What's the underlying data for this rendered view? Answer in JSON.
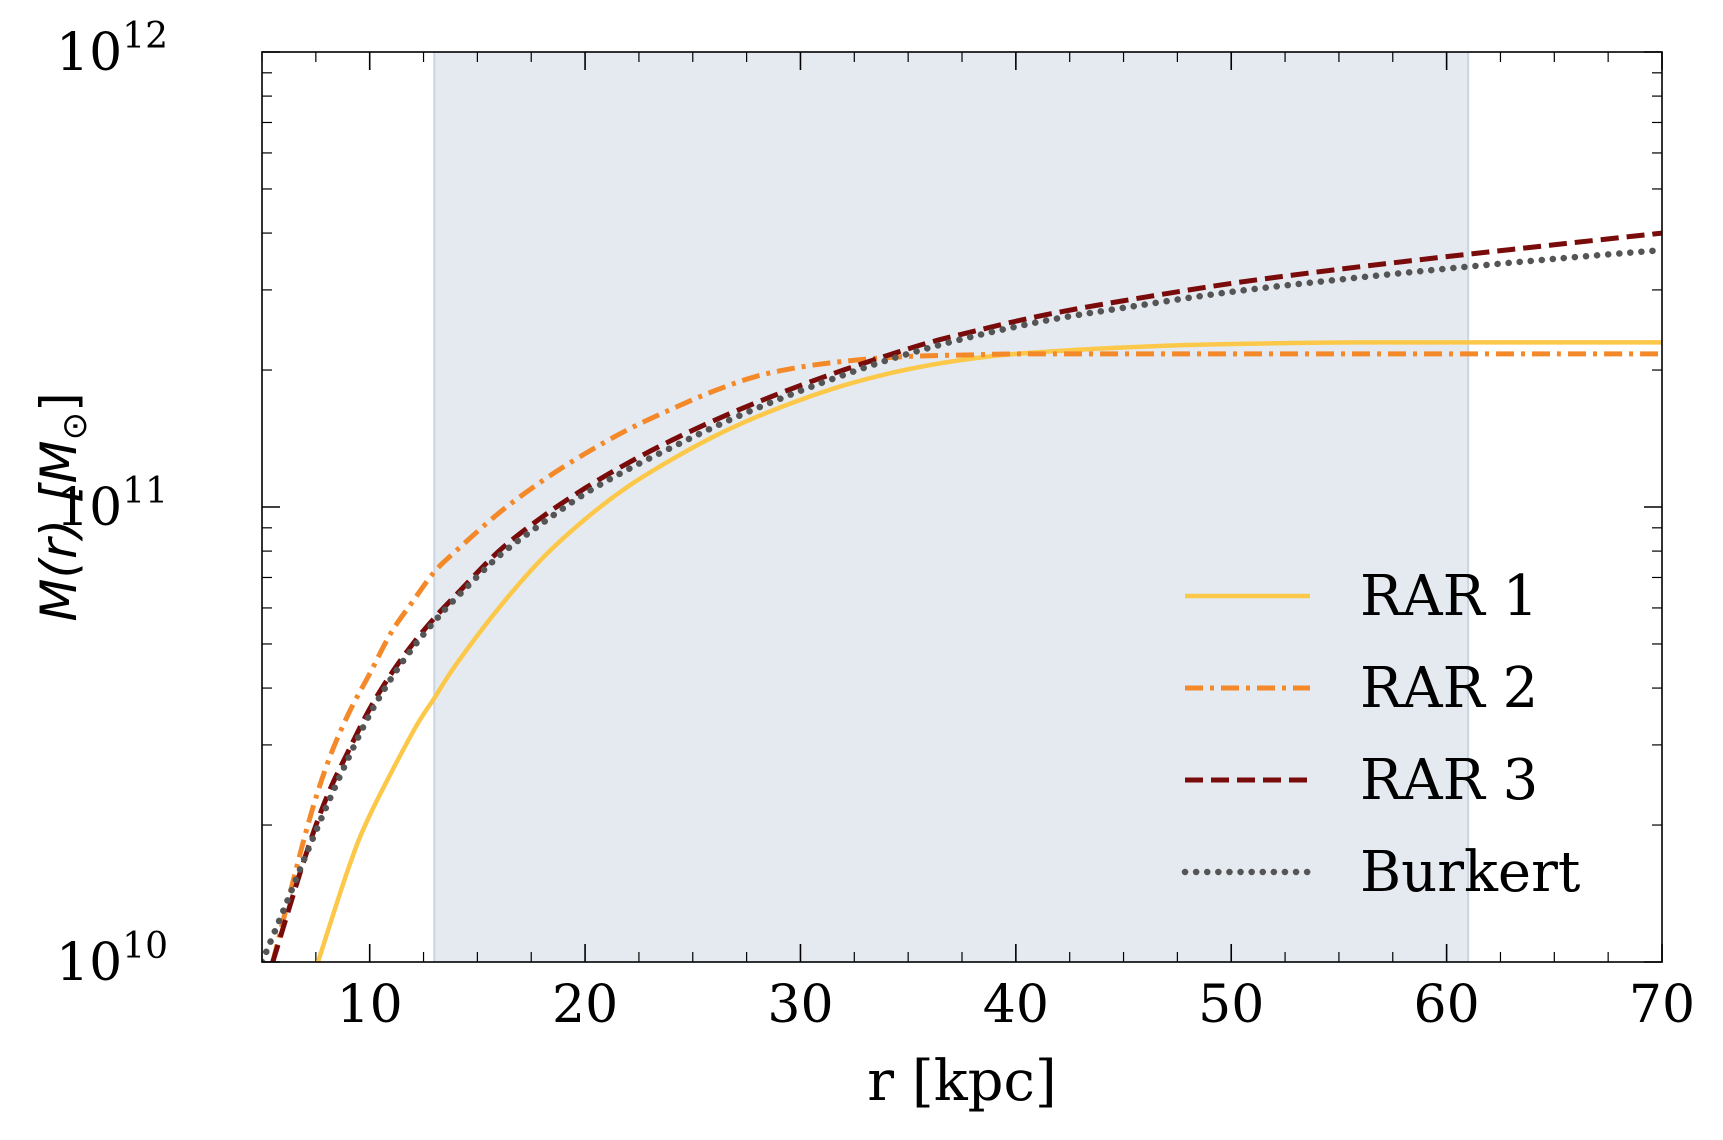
{
  "chart_data": {
    "type": "line",
    "xlabel": "r [kpc]",
    "ylabel": {
      "prefix": "M(r) [M",
      "sub": "⊙",
      "suffix": "]"
    },
    "yscale": "log",
    "xlim": [
      5,
      70
    ],
    "ylim": [
      10000000000,
      1000000000000
    ],
    "x_ticks": [
      {
        "value": 10,
        "label": "10"
      },
      {
        "value": 20,
        "label": "20"
      },
      {
        "value": 30,
        "label": "30"
      },
      {
        "value": 40,
        "label": "40"
      },
      {
        "value": 50,
        "label": "50"
      },
      {
        "value": 60,
        "label": "60"
      },
      {
        "value": 70,
        "label": "70"
      }
    ],
    "y_ticks": [
      {
        "value": 10000000000,
        "base": "10",
        "exp": "10"
      },
      {
        "value": 100000000000,
        "base": "10",
        "exp": "11"
      },
      {
        "value": 1000000000000,
        "base": "10",
        "exp": "12"
      }
    ],
    "shaded_region": {
      "x_start": 13,
      "x_end": 61,
      "color": "#e5eaf1",
      "edge_color": "#c9d5e2"
    },
    "legend_position": "center-right",
    "series": [
      {
        "name": "RAR 1",
        "color": "#fcc84a",
        "style": "solid",
        "x": [
          7.6,
          9,
          10,
          12,
          13,
          14,
          16,
          18,
          20,
          22,
          24,
          26,
          28,
          30,
          32,
          34,
          36,
          38,
          40,
          44,
          48,
          52,
          56,
          60,
          65,
          70
        ],
        "y": [
          10000000000,
          16000000000,
          21000000000,
          32000000000,
          38000000000,
          45000000000,
          60000000000,
          77000000000,
          94000000000,
          111000000000,
          127000000000,
          143000000000,
          158000000000,
          172000000000,
          185000000000,
          196000000000,
          205000000000,
          212000000000,
          217000000000,
          223000000000,
          227000000000,
          229000000000,
          230000000000,
          230000000000,
          230000000000,
          230000000000
        ]
      },
      {
        "name": "RAR 2",
        "color": "#f4892a",
        "style": "dashdot",
        "x": [
          5.5,
          7,
          8,
          9,
          10,
          11,
          12,
          13,
          14,
          16,
          18,
          20,
          22,
          24,
          26,
          28,
          30,
          32,
          34,
          36,
          38,
          40,
          45,
          50,
          55,
          60,
          65,
          70
        ],
        "y": [
          10000000000,
          19000000000,
          27000000000,
          35000000000,
          43000000000,
          53000000000,
          62000000000,
          72000000000,
          80000000000,
          97000000000,
          114000000000,
          131000000000,
          148000000000,
          164000000000,
          180000000000,
          194000000000,
          203000000000,
          209000000000,
          213000000000,
          215000000000,
          216000000000,
          217000000000,
          217000000000,
          217000000000,
          217000000000,
          217000000000,
          217000000000,
          217000000000
        ]
      },
      {
        "name": "RAR 3",
        "color": "#7a0b0b",
        "style": "dashed",
        "x": [
          5.5,
          7,
          8,
          9,
          10,
          11,
          12,
          13,
          14,
          16,
          18,
          20,
          22,
          24,
          26,
          28,
          30,
          32,
          34,
          36,
          38,
          40,
          42,
          45,
          50,
          55,
          60,
          65,
          70
        ],
        "y": [
          10000000000,
          17000000000,
          23000000000,
          29000000000,
          36000000000,
          43000000000,
          50000000000,
          57000000000,
          64000000000,
          80000000000,
          95000000000,
          110000000000,
          125000000000,
          140000000000,
          155000000000,
          170000000000,
          185000000000,
          200000000000,
          215000000000,
          230000000000,
          243000000000,
          256000000000,
          268000000000,
          284000000000,
          310000000000,
          333000000000,
          355000000000,
          377000000000,
          400000000000
        ]
      },
      {
        "name": "Burkert",
        "color": "#555555",
        "style": "dotted",
        "x": [
          5,
          6,
          7,
          8,
          9,
          10,
          11,
          12,
          13,
          14,
          16,
          18,
          20,
          22,
          24,
          26,
          28,
          30,
          32,
          34,
          36,
          38,
          40,
          42,
          45,
          50,
          55,
          60,
          65,
          70
        ],
        "y": [
          10000000000,
          13000000000,
          17000000000,
          22000000000,
          28000000000,
          35000000000,
          42000000000,
          49000000000,
          56000000000,
          63000000000,
          78000000000,
          92000000000,
          107000000000,
          121000000000,
          135000000000,
          150000000000,
          165000000000,
          180000000000,
          195000000000,
          210000000000,
          224000000000,
          237000000000,
          249000000000,
          260000000000,
          274000000000,
          297000000000,
          316000000000,
          334000000000,
          351000000000,
          367000000000
        ]
      }
    ]
  }
}
